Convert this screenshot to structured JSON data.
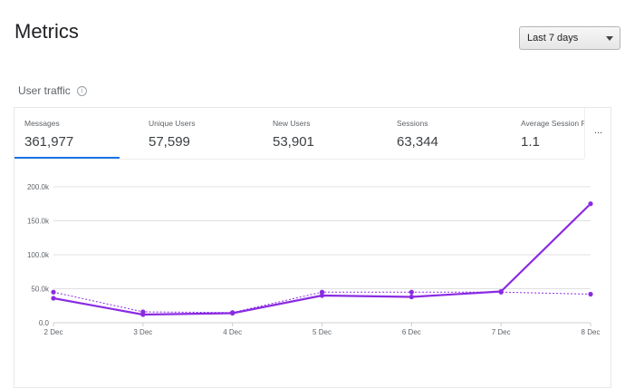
{
  "header": {
    "title": "Metrics"
  },
  "date_range": {
    "selected": "Last 7 days"
  },
  "section": {
    "title": "User traffic"
  },
  "icons": {
    "info": "info-icon",
    "more": "more-horizontal-icon",
    "dropdown": "chevron-down-icon"
  },
  "tabs": [
    {
      "label": "Messages",
      "value": "361,977",
      "active": true
    },
    {
      "label": "Unique Users",
      "value": "57,599",
      "active": false
    },
    {
      "label": "New Users",
      "value": "53,901",
      "active": false
    },
    {
      "label": "Sessions",
      "value": "63,344",
      "active": false
    },
    {
      "label": "Average Session Pe",
      "value": "1.1",
      "active": false
    }
  ],
  "more_label": "...",
  "colors": {
    "series": "#8a2be2",
    "active_tab": "#1a73e8",
    "grid": "#e0e0e0"
  },
  "chart_data": {
    "type": "line",
    "categories": [
      "2 Dec",
      "3 Dec",
      "4 Dec",
      "5 Dec",
      "6 Dec",
      "7 Dec",
      "8 Dec"
    ],
    "y_ticks": [
      "0.0",
      "50.0k",
      "100.0k",
      "150.0k",
      "200.0k"
    ],
    "ylim": [
      0,
      200000
    ],
    "series": [
      {
        "style": "solid",
        "values": [
          36000,
          12000,
          14000,
          40000,
          38000,
          46000,
          175000
        ]
      },
      {
        "style": "dotted",
        "values": [
          45000,
          16000,
          15000,
          45000,
          45000,
          45000,
          42000
        ]
      }
    ],
    "grid": true
  }
}
